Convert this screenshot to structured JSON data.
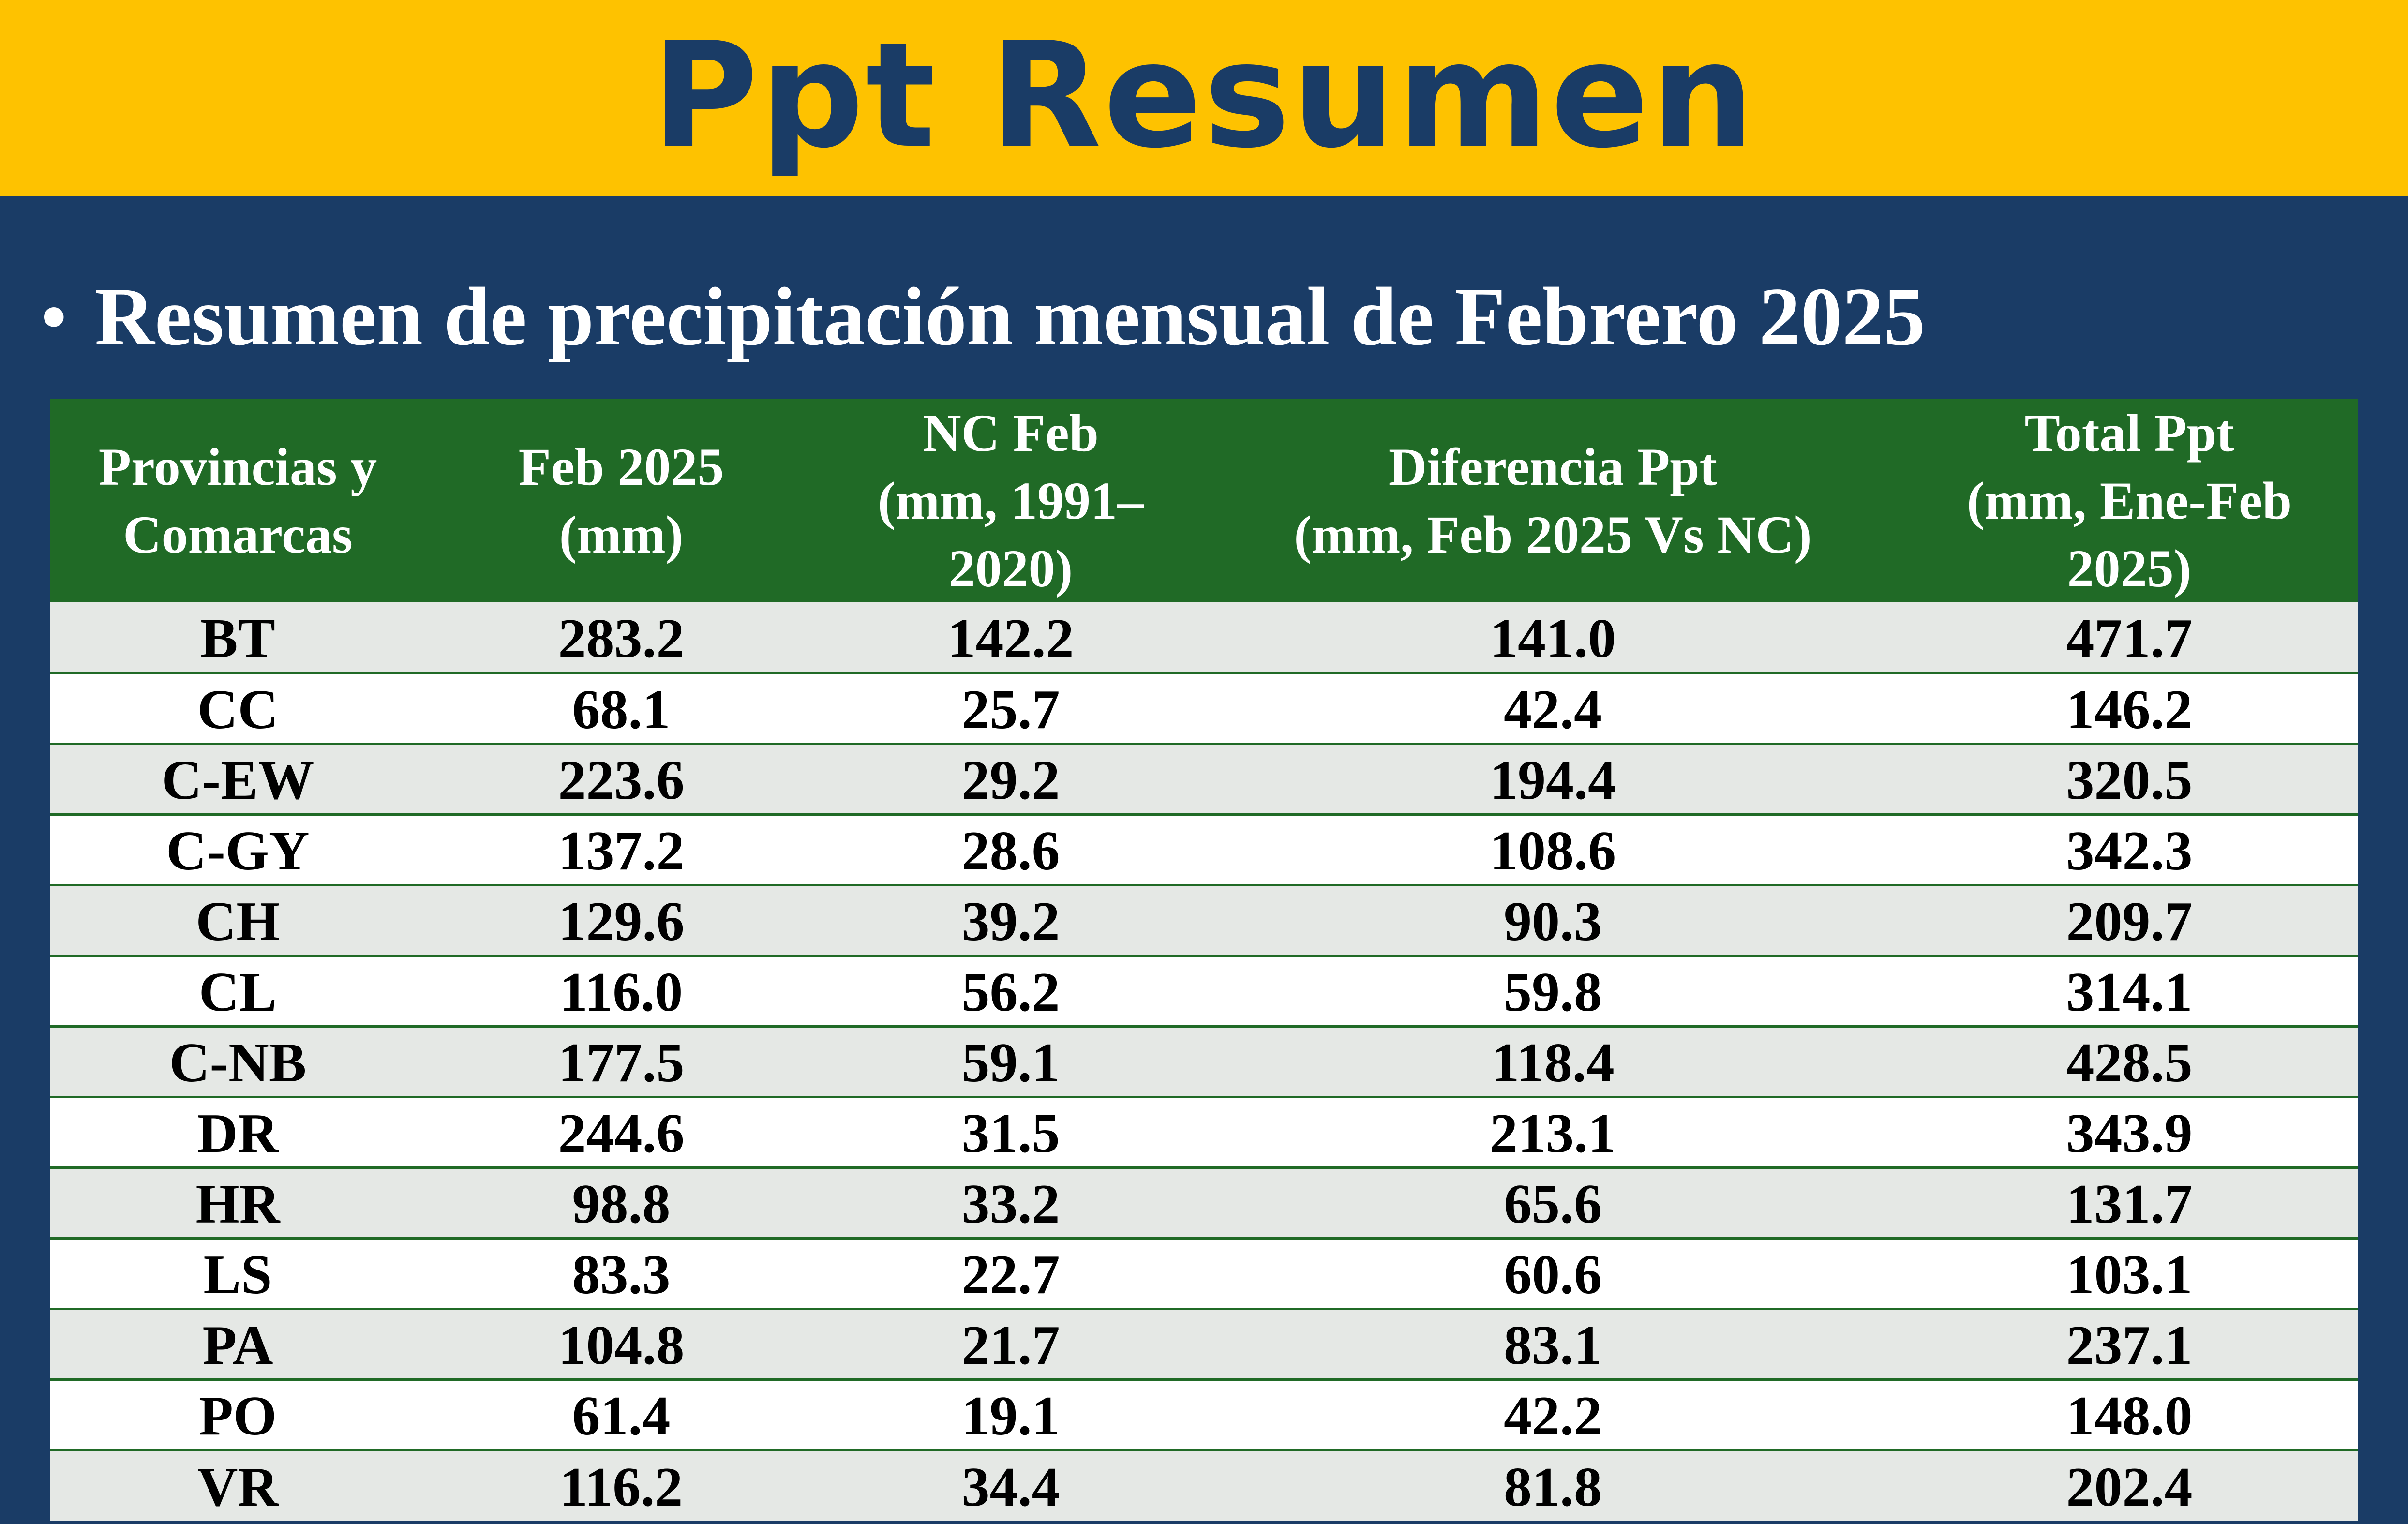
{
  "header": {
    "title": "Ppt Resumen",
    "background_color": "#fec200",
    "text_color": "#1a3c66"
  },
  "subtitle": {
    "bullet": "•",
    "text": "Resumen de precipitación mensual de Febrero 2025"
  },
  "table": {
    "header_color": "#206a26",
    "row_alt_color": "#e5e8e5",
    "columns": [
      {
        "line1": "Provincias y",
        "line2": "Comarcas"
      },
      {
        "line1": "Feb 2025",
        "line2": "(mm)"
      },
      {
        "line1": "NC Feb",
        "line2": "(mm, 1991–2020)"
      },
      {
        "line1": "Diferencia Ppt",
        "line2": "(mm, Feb 2025 Vs NC)"
      },
      {
        "line1": "Total Ppt",
        "line2": "(mm, Ene-Feb 2025)"
      }
    ],
    "rows": [
      [
        "BT",
        "283.2",
        "142.2",
        "141.0",
        "471.7"
      ],
      [
        "CC",
        "68.1",
        "25.7",
        "42.4",
        "146.2"
      ],
      [
        "C-EW",
        "223.6",
        "29.2",
        "194.4",
        "320.5"
      ],
      [
        "C-GY",
        "137.2",
        "28.6",
        "108.6",
        "342.3"
      ],
      [
        "CH",
        "129.6",
        "39.2",
        "90.3",
        "209.7"
      ],
      [
        "CL",
        "116.0",
        "56.2",
        "59.8",
        "314.1"
      ],
      [
        "C-NB",
        "177.5",
        "59.1",
        "118.4",
        "428.5"
      ],
      [
        "DR",
        "244.6",
        "31.5",
        "213.1",
        "343.9"
      ],
      [
        "HR",
        "98.8",
        "33.2",
        "65.6",
        "131.7"
      ],
      [
        "LS",
        "83.3",
        "22.7",
        "60.6",
        "103.1"
      ],
      [
        "PA",
        "104.8",
        "21.7",
        "83.1",
        "237.1"
      ],
      [
        "PO",
        "61.4",
        "19.1",
        "42.2",
        "148.0"
      ],
      [
        "VR",
        "116.2",
        "34.4",
        "81.8",
        "202.4"
      ]
    ]
  }
}
